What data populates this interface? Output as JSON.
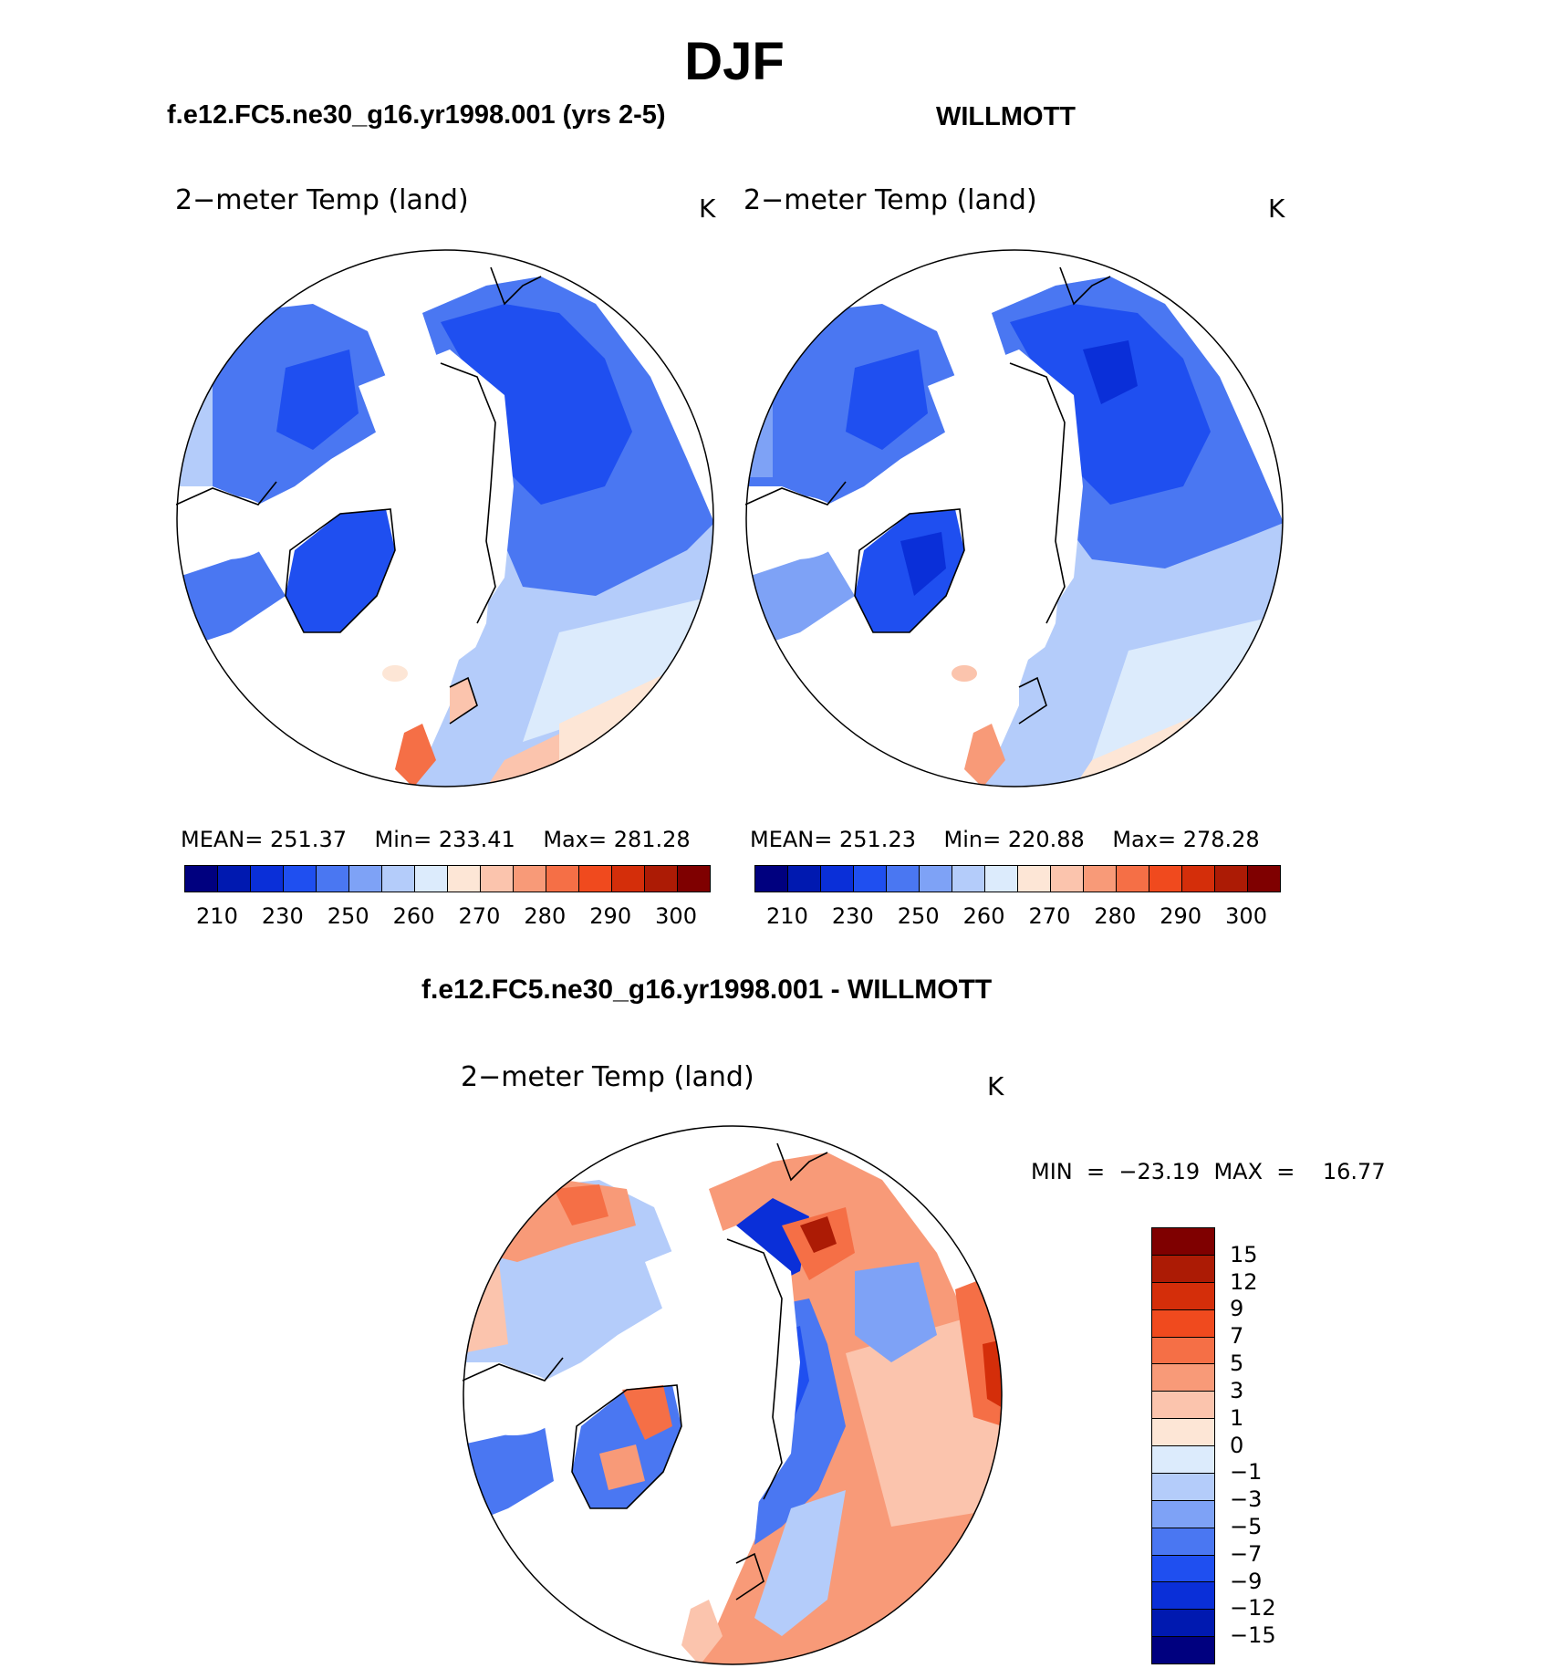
{
  "figure": {
    "title": "DJF"
  },
  "panels": {
    "model": {
      "case_title": "f.e12.FC5.ne30_g16.yr1998.001 (yrs 2-5)",
      "variable": "2−meter Temp (land)",
      "units": "K",
      "stats": {
        "mean_label": "MEAN=",
        "mean": "251.37",
        "min_label": "Min=",
        "min": "233.41",
        "max_label": "Max=",
        "max": "281.28"
      }
    },
    "obs": {
      "case_title": "WILLMOTT",
      "variable": "2−meter Temp (land)",
      "units": "K",
      "stats": {
        "mean_label": "MEAN=",
        "mean": "251.23",
        "min_label": "Min=",
        "min": "220.88",
        "max_label": "Max=",
        "max": "278.28"
      }
    },
    "diff": {
      "case_title": "f.e12.FC5.ne30_g16.yr1998.001 - WILLMOTT",
      "variable": "2−meter Temp (land)",
      "units": "K",
      "minmax": "MIN  =  −23.19  MAX  =    16.77"
    }
  },
  "abs_colorbar": {
    "tick_labels": [
      "210",
      "230",
      "250",
      "260",
      "270",
      "280",
      "290",
      "300"
    ],
    "colors": [
      "#00007f",
      "#0019b0",
      "#0a2fd8",
      "#1f4ff0",
      "#4a77f2",
      "#7ea2f6",
      "#b4ccfa",
      "#dcebfc",
      "#fde6d6",
      "#fbc4ad",
      "#f89a78",
      "#f56f46",
      "#f04a1e",
      "#d42e0a",
      "#ac1b05",
      "#7f0000"
    ]
  },
  "diff_colorbar": {
    "tick_labels": [
      "15",
      "12",
      "9",
      "7",
      "5",
      "3",
      "1",
      "0",
      "−1",
      "−3",
      "−5",
      "−7",
      "−9",
      "−12",
      "−15"
    ],
    "colors": [
      "#7f0000",
      "#ac1b05",
      "#d42e0a",
      "#f04a1e",
      "#f56f46",
      "#f89a78",
      "#fbc4ad",
      "#fde6d6",
      "#dcebfc",
      "#b4ccfa",
      "#7ea2f6",
      "#4a77f2",
      "#1f4ff0",
      "#0a2fd8",
      "#0019b0",
      "#00007f"
    ]
  }
}
